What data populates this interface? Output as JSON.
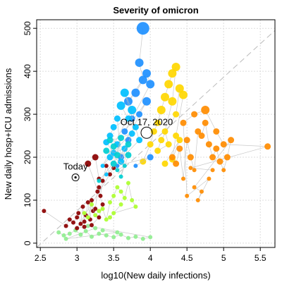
{
  "chart_data": {
    "type": "scatter",
    "title": "Severity of omicron",
    "xlabel": "log10(New daily infections)",
    "ylabel": "New daily hosp+ICU admissions",
    "xlim": [
      2.45,
      5.7
    ],
    "ylim": [
      -10,
      520
    ],
    "xticks": [
      "2.5",
      "3",
      "3.5",
      "4",
      "4.5",
      "5",
      "5.5"
    ],
    "xtick_values": [
      2.5,
      3,
      3.5,
      4,
      4.5,
      5,
      5.5
    ],
    "yticks": [
      "0",
      "100",
      "200",
      "300",
      "400",
      "500"
    ],
    "ytick_values": [
      0,
      100,
      200,
      300,
      400,
      500
    ],
    "grid": true,
    "reference_line": {
      "style": "dashed",
      "color": "#bbbbbb",
      "from": [
        2.45,
        -10
      ],
      "to": [
        5.7,
        495
      ]
    },
    "annotations": [
      {
        "text": "Oct 17, 2020",
        "x": 3.95,
        "y": 257,
        "marker": "open-circle"
      },
      {
        "text": "Today",
        "x": 2.98,
        "y": 153,
        "marker": "circled-dot"
      }
    ],
    "series": [
      {
        "color": "#90ee90",
        "points": [
          [
            2.75,
            25
          ],
          [
            2.82,
            18
          ],
          [
            2.9,
            22
          ],
          [
            2.98,
            30
          ],
          [
            3.05,
            20
          ],
          [
            3.12,
            28
          ],
          [
            3.2,
            15
          ],
          [
            3.3,
            22
          ],
          [
            3.4,
            18
          ],
          [
            3.5,
            14
          ],
          [
            3.6,
            20
          ],
          [
            3.7,
            12
          ],
          [
            3.8,
            15
          ],
          [
            3.9,
            10
          ],
          [
            4.0,
            14
          ],
          [
            3.15,
            40
          ],
          [
            3.25,
            35
          ],
          [
            2.85,
            10
          ],
          [
            3.55,
            25
          ],
          [
            3.35,
            30
          ]
        ]
      },
      {
        "color": "#8b0000",
        "points": [
          [
            2.55,
            75
          ],
          [
            2.85,
            40
          ],
          [
            2.9,
            55
          ],
          [
            2.95,
            48
          ],
          [
            3.0,
            60
          ],
          [
            3.02,
            70
          ],
          [
            3.05,
            45
          ],
          [
            3.08,
            85
          ],
          [
            3.1,
            50
          ],
          [
            3.12,
            65
          ],
          [
            3.15,
            95
          ],
          [
            3.18,
            55
          ],
          [
            3.2,
            100
          ],
          [
            3.22,
            75
          ],
          [
            3.25,
            80
          ],
          [
            3.28,
            120
          ],
          [
            3.3,
            130
          ],
          [
            3.32,
            110
          ],
          [
            3.35,
            145
          ],
          [
            3.4,
            180
          ],
          [
            3.45,
            160
          ],
          [
            3.5,
            175
          ],
          [
            3.0,
            35
          ],
          [
            3.1,
            38
          ],
          [
            3.2,
            42
          ],
          [
            3.3,
            60
          ],
          [
            3.35,
            90
          ],
          [
            3.15,
            185
          ],
          [
            3.25,
            200
          ],
          [
            3.3,
            150
          ]
        ]
      },
      {
        "color": "#adff2f",
        "points": [
          [
            3.1,
            70
          ],
          [
            3.15,
            60
          ],
          [
            3.2,
            90
          ],
          [
            3.25,
            65
          ],
          [
            3.3,
            75
          ],
          [
            3.35,
            80
          ],
          [
            3.4,
            55
          ],
          [
            3.45,
            95
          ],
          [
            3.5,
            110
          ],
          [
            3.55,
            130
          ],
          [
            3.6,
            120
          ],
          [
            3.65,
            105
          ],
          [
            3.7,
            140
          ],
          [
            3.75,
            100
          ],
          [
            3.8,
            85
          ],
          [
            3.5,
            70
          ],
          [
            3.45,
            60
          ],
          [
            3.6,
            90
          ]
        ]
      },
      {
        "color": "#ffd700",
        "points": [
          [
            3.9,
            190
          ],
          [
            4.0,
            230
          ],
          [
            4.05,
            260
          ],
          [
            4.1,
            280
          ],
          [
            4.15,
            310
          ],
          [
            4.2,
            340
          ],
          [
            4.25,
            370
          ],
          [
            4.3,
            395
          ],
          [
            4.35,
            410
          ],
          [
            4.3,
            330
          ],
          [
            4.2,
            260
          ],
          [
            4.25,
            230
          ],
          [
            4.1,
            215
          ],
          [
            4.15,
            240
          ],
          [
            4.35,
            300
          ],
          [
            4.4,
            360
          ],
          [
            4.45,
            345
          ],
          [
            4.35,
            250
          ],
          [
            4.3,
            195
          ],
          [
            4.4,
            240
          ],
          [
            4.2,
            185
          ]
        ]
      },
      {
        "color": "#ff8c00",
        "points": [
          [
            4.3,
            200
          ],
          [
            4.35,
            185
          ],
          [
            4.4,
            220
          ],
          [
            4.45,
            150
          ],
          [
            4.5,
            240
          ],
          [
            4.55,
            200
          ],
          [
            4.6,
            170
          ],
          [
            4.65,
            260
          ],
          [
            4.7,
            250
          ],
          [
            4.75,
            280
          ],
          [
            4.8,
            230
          ],
          [
            4.85,
            200
          ],
          [
            4.9,
            220
          ],
          [
            4.95,
            190
          ],
          [
            5.0,
            170
          ],
          [
            5.05,
            200
          ],
          [
            5.1,
            240
          ],
          [
            4.6,
            130
          ],
          [
            4.7,
            120
          ],
          [
            4.65,
            100
          ],
          [
            4.8,
            150
          ],
          [
            4.5,
            110
          ],
          [
            4.45,
            280
          ],
          [
            4.6,
            300
          ],
          [
            4.75,
            310
          ],
          [
            4.9,
            260
          ],
          [
            5.0,
            230
          ],
          [
            5.6,
            225
          ],
          [
            4.55,
            175
          ],
          [
            4.85,
            170
          ]
        ]
      },
      {
        "color": "#1e90ff",
        "points": [
          [
            3.9,
            500
          ],
          [
            3.85,
            420
          ],
          [
            3.9,
            380
          ],
          [
            3.8,
            350
          ],
          [
            3.7,
            330
          ],
          [
            3.95,
            395
          ],
          [
            4.0,
            370
          ],
          [
            3.75,
            290
          ],
          [
            3.65,
            260
          ],
          [
            3.95,
            330
          ],
          [
            3.85,
            300
          ],
          [
            3.7,
            240
          ],
          [
            3.6,
            200
          ],
          [
            3.55,
            180
          ],
          [
            4.0,
            200
          ],
          [
            3.8,
            180
          ]
        ]
      },
      {
        "color": "#00bfff",
        "points": [
          [
            3.6,
            320
          ],
          [
            3.7,
            290
          ],
          [
            3.5,
            270
          ],
          [
            3.45,
            250
          ],
          [
            3.55,
            230
          ],
          [
            3.65,
            220
          ],
          [
            3.5,
            210
          ],
          [
            3.4,
            235
          ],
          [
            3.75,
            255
          ],
          [
            3.6,
            190
          ],
          [
            3.55,
            290
          ],
          [
            3.8,
            270
          ],
          [
            3.45,
            200
          ],
          [
            3.35,
            180
          ],
          [
            3.75,
            310
          ],
          [
            3.65,
            350
          ],
          [
            3.85,
            240
          ],
          [
            3.4,
            160
          ]
        ]
      },
      {
        "color": "#00ced1",
        "points": [
          [
            3.45,
            240
          ],
          [
            3.5,
            225
          ],
          [
            3.55,
            205
          ],
          [
            3.6,
            245
          ],
          [
            3.5,
            185
          ],
          [
            3.55,
            170
          ],
          [
            3.65,
            180
          ],
          [
            3.4,
            215
          ],
          [
            3.7,
            205
          ],
          [
            3.6,
            155
          ],
          [
            3.7,
            230
          ],
          [
            3.3,
            145
          ]
        ]
      }
    ]
  }
}
